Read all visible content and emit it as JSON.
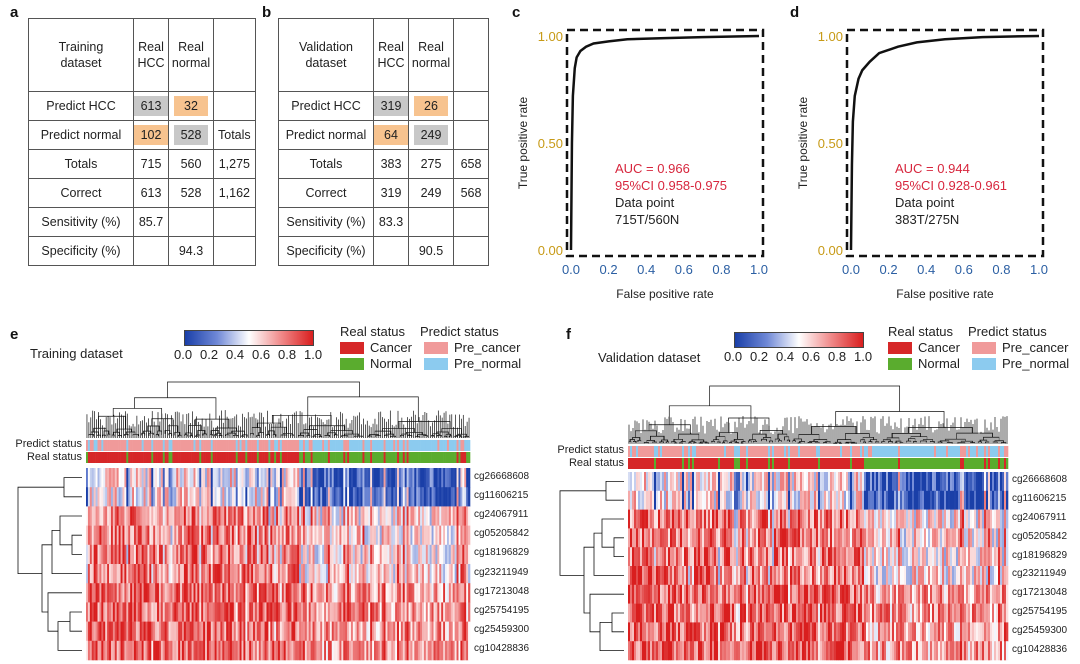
{
  "panels": [
    "a",
    "b",
    "c",
    "d",
    "e",
    "f"
  ],
  "table_a": {
    "corner": [
      "Training",
      "dataset"
    ],
    "col_headers": [
      [
        "Real",
        "HCC"
      ],
      [
        "Real",
        "normal"
      ],
      [
        ""
      ]
    ],
    "rows": [
      {
        "label": "Predict HCC",
        "cells": [
          "613",
          "32",
          ""
        ]
      },
      {
        "label": "Predict normal",
        "cells": [
          "102",
          "528",
          "Totals"
        ]
      },
      {
        "label": "Totals",
        "cells": [
          "715",
          "560",
          "1,275"
        ]
      },
      {
        "label": "Correct",
        "cells": [
          "613",
          "528",
          "1,162"
        ]
      },
      {
        "label": "Sensitivity (%)",
        "cells": [
          "85.7",
          "",
          ""
        ]
      },
      {
        "label": "Specificity (%)",
        "cells": [
          "",
          "94.3",
          ""
        ]
      }
    ]
  },
  "table_b": {
    "corner": [
      "Validation",
      "dataset"
    ],
    "col_headers": [
      [
        "Real",
        "HCC"
      ],
      [
        "Real",
        "normal"
      ],
      [
        ""
      ]
    ],
    "rows": [
      {
        "label": "Predict HCC",
        "cells": [
          "319",
          "26",
          ""
        ]
      },
      {
        "label": "Predict normal",
        "cells": [
          "64",
          "249",
          ""
        ]
      },
      {
        "label": "Totals",
        "cells": [
          "383",
          "275",
          "658"
        ]
      },
      {
        "label": "Correct",
        "cells": [
          "319",
          "249",
          "568"
        ]
      },
      {
        "label": "Sensitivity (%)",
        "cells": [
          "83.3",
          "",
          ""
        ]
      },
      {
        "label": "Specificity (%)",
        "cells": [
          "",
          "90.5",
          ""
        ]
      }
    ]
  },
  "colors": {
    "grey_cell": "#c8c8c8",
    "orange_cell": "#f7c38f",
    "cancer": "#d62728",
    "normal": "#5aac2e",
    "pre_cancer": "#f09a9a",
    "pre_normal": "#8ccbef",
    "low": "#1a3fa8",
    "high": "#d91e1e",
    "auc_text": "#d7263d"
  },
  "chart_data": [
    {
      "type": "line",
      "panel": "c",
      "xlabel": "False positive rate",
      "ylabel": "True positive rate",
      "xlim": [
        0,
        1
      ],
      "ylim": [
        0,
        1
      ],
      "x_ticks": [
        "0.0",
        "0.2",
        "0.4",
        "0.6",
        "0.8",
        "1.0"
      ],
      "y_ticks": [
        "0.00",
        "0.50",
        "1.00"
      ],
      "series": [
        {
          "name": "ROC",
          "x": [
            0,
            0.005,
            0.01,
            0.02,
            0.03,
            0.05,
            0.08,
            0.12,
            0.2,
            0.3,
            0.5,
            0.7,
            1.0
          ],
          "y": [
            0,
            0.5,
            0.72,
            0.85,
            0.9,
            0.93,
            0.95,
            0.965,
            0.975,
            0.985,
            0.99,
            0.995,
            1.0
          ]
        }
      ],
      "annotations": [
        "AUC = 0.966",
        "95%CI 0.958-0.975",
        "Data point",
        "715T/560N"
      ]
    },
    {
      "type": "line",
      "panel": "d",
      "xlabel": "False positive rate",
      "ylabel": "True positive rate",
      "xlim": [
        0,
        1
      ],
      "ylim": [
        0,
        1
      ],
      "x_ticks": [
        "0.0",
        "0.2",
        "0.4",
        "0.6",
        "0.8",
        "1.0"
      ],
      "y_ticks": [
        "0.00",
        "0.50",
        "1.00"
      ],
      "series": [
        {
          "name": "ROC",
          "x": [
            0,
            0.005,
            0.01,
            0.02,
            0.04,
            0.06,
            0.1,
            0.15,
            0.25,
            0.35,
            0.5,
            0.7,
            1.0
          ],
          "y": [
            0,
            0.4,
            0.6,
            0.72,
            0.8,
            0.84,
            0.88,
            0.92,
            0.95,
            0.97,
            0.985,
            0.995,
            1.0
          ]
        }
      ],
      "annotations": [
        "AUC = 0.944",
        "95%CI 0.928-0.961",
        "Data point",
        "383T/275N"
      ]
    }
  ],
  "heatmap_e": {
    "title": "Training dataset",
    "scale_ticks": [
      "0.0",
      "0.2",
      "0.4",
      "0.6",
      "0.8",
      "1.0"
    ],
    "legend": {
      "real_title": "Real status",
      "predict_title": "Predict status",
      "real_items": [
        "Cancer",
        "Normal"
      ],
      "predict_items": [
        "Pre_cancer",
        "Pre_normal"
      ]
    },
    "status_labels": [
      "Predict status",
      "Real status"
    ],
    "genes": [
      "cg26668608",
      "cg11606215",
      "cg24067911",
      "cg05205842",
      "cg18196829",
      "cg23211949",
      "cg17213048",
      "cg25754195",
      "cg25459300",
      "cg10428836"
    ]
  },
  "heatmap_f": {
    "title": "Validation dataset",
    "scale_ticks": [
      "0.0",
      "0.2",
      "0.4",
      "0.6",
      "0.8",
      "1.0"
    ],
    "legend": {
      "real_title": "Real status",
      "predict_title": "Predict status",
      "real_items": [
        "Cancer",
        "Normal"
      ],
      "predict_items": [
        "Pre_cancer",
        "Pre_normal"
      ]
    },
    "status_labels": [
      "Predict status",
      "Real status"
    ],
    "genes": [
      "cg26668608",
      "cg11606215",
      "cg24067911",
      "cg05205842",
      "cg18196829",
      "cg23211949",
      "cg17213048",
      "cg25754195",
      "cg25459300",
      "cg10428836"
    ]
  }
}
